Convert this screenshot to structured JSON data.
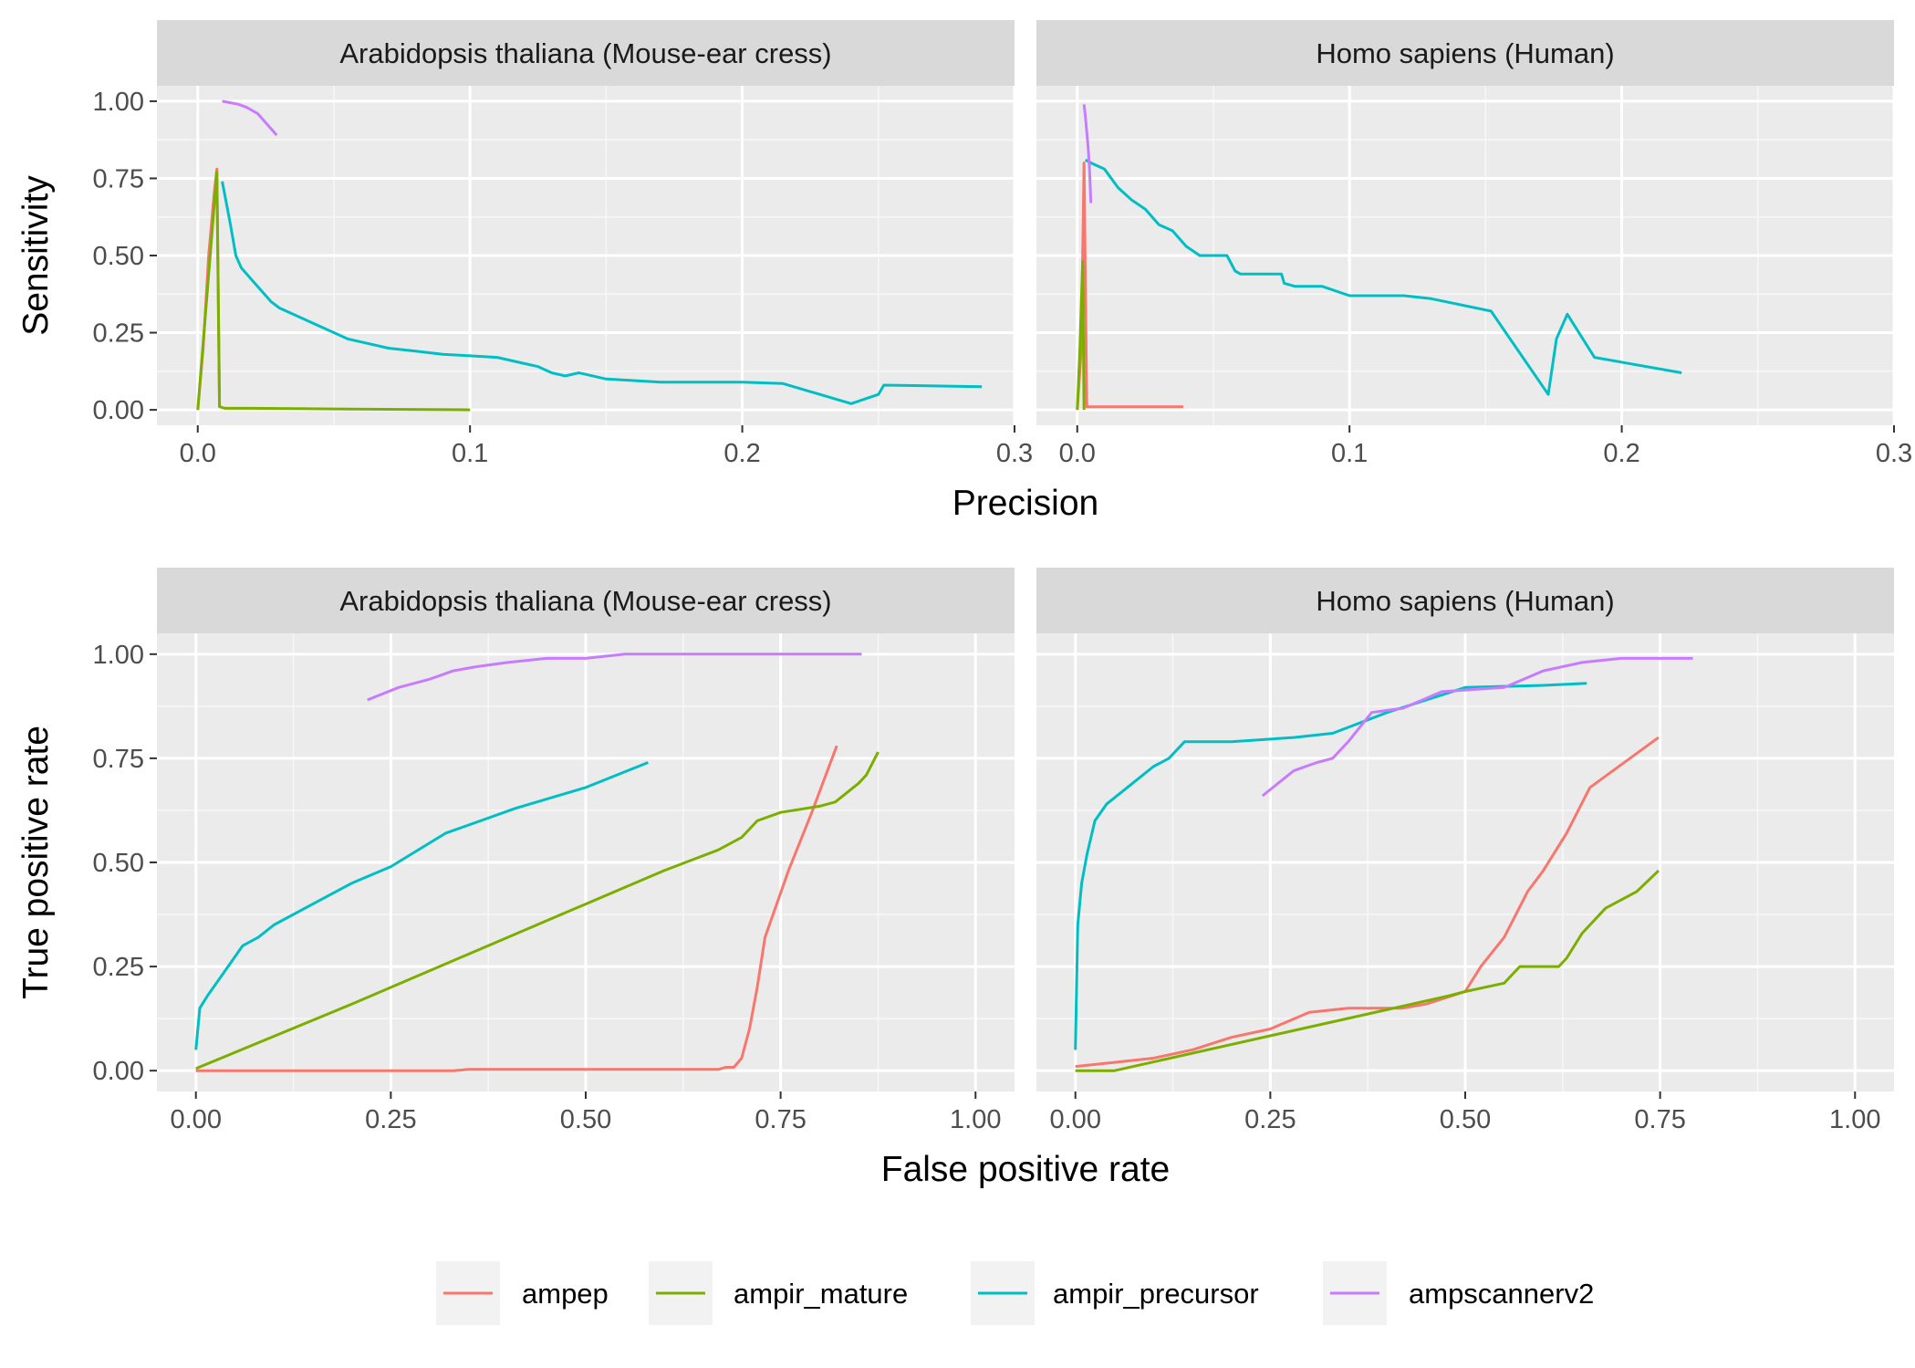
{
  "chart_data": [
    {
      "type": "line",
      "panel": "precision-sensitivity",
      "facets": [
        "Arabidopsis thaliana (Mouse-ear cress)",
        "Homo sapiens (Human)"
      ],
      "xlabel": "Precision",
      "ylabel": "Sensitivity",
      "xlim": [
        -0.015,
        0.3
      ],
      "ylim": [
        -0.05,
        1.05
      ],
      "x_ticks": [
        "0.0",
        "0.1",
        "0.2",
        "0.3"
      ],
      "x_tick_values": [
        0,
        0.1,
        0.2,
        0.3
      ],
      "y_ticks": [
        "0.00",
        "0.25",
        "0.50",
        "0.75",
        "1.00"
      ],
      "y_tick_values": [
        0,
        0.25,
        0.5,
        0.75,
        1.0
      ],
      "grid": true,
      "facet_series": [
        [
          {
            "name": "ampep",
            "x": [
              0.0,
              0.002,
              0.004,
              0.006,
              0.007,
              0.008
            ],
            "y": [
              0.0,
              0.2,
              0.5,
              0.7,
              0.78,
              0.01
            ]
          },
          {
            "name": "ampir_mature",
            "x": [
              0.0,
              0.007,
              0.008,
              0.01,
              0.02,
              0.05,
              0.1
            ],
            "y": [
              0.0,
              0.77,
              0.01,
              0.005,
              0.005,
              0.003,
              0.0
            ]
          },
          {
            "name": "ampir_precursor",
            "x": [
              0.009,
              0.012,
              0.014,
              0.016,
              0.02,
              0.027,
              0.03,
              0.035,
              0.04,
              0.045,
              0.05,
              0.055,
              0.06,
              0.07,
              0.08,
              0.09,
              0.1,
              0.11,
              0.12,
              0.125,
              0.13,
              0.135,
              0.14,
              0.15,
              0.17,
              0.2,
              0.215,
              0.24,
              0.25,
              0.252,
              0.288
            ],
            "y": [
              0.74,
              0.6,
              0.5,
              0.46,
              0.42,
              0.35,
              0.33,
              0.31,
              0.29,
              0.27,
              0.25,
              0.23,
              0.22,
              0.2,
              0.19,
              0.18,
              0.175,
              0.17,
              0.15,
              0.14,
              0.12,
              0.11,
              0.12,
              0.1,
              0.09,
              0.09,
              0.085,
              0.02,
              0.05,
              0.08,
              0.075
            ]
          },
          {
            "name": "ampscannerv2",
            "x": [
              0.009,
              0.012,
              0.015,
              0.018,
              0.022,
              0.025,
              0.029
            ],
            "y": [
              1.0,
              0.995,
              0.99,
              0.98,
              0.96,
              0.93,
              0.89
            ]
          }
        ],
        [
          {
            "name": "ampep",
            "x": [
              0.0,
              0.0015,
              0.0025,
              0.0035,
              0.01,
              0.02,
              0.039
            ],
            "y": [
              0.0,
              0.2,
              0.8,
              0.01,
              0.01,
              0.01,
              0.01
            ]
          },
          {
            "name": "ampir_mature",
            "x": [
              0.0,
              0.001,
              0.002,
              0.0025
            ],
            "y": [
              0.0,
              0.2,
              0.48,
              0.0
            ]
          },
          {
            "name": "ampir_precursor",
            "x": [
              0.003,
              0.005,
              0.01,
              0.015,
              0.02,
              0.025,
              0.03,
              0.035,
              0.04,
              0.045,
              0.05,
              0.055,
              0.058,
              0.06,
              0.075,
              0.076,
              0.08,
              0.09,
              0.1,
              0.11,
              0.12,
              0.13,
              0.152,
              0.173,
              0.176,
              0.18,
              0.19,
              0.222
            ],
            "y": [
              0.81,
              0.8,
              0.78,
              0.72,
              0.68,
              0.65,
              0.6,
              0.58,
              0.53,
              0.5,
              0.5,
              0.5,
              0.45,
              0.44,
              0.44,
              0.41,
              0.4,
              0.4,
              0.37,
              0.37,
              0.37,
              0.36,
              0.32,
              0.05,
              0.23,
              0.31,
              0.17,
              0.12
            ]
          },
          {
            "name": "ampscannerv2",
            "x": [
              0.0025,
              0.003,
              0.0035,
              0.004,
              0.0045,
              0.005
            ],
            "y": [
              0.99,
              0.95,
              0.9,
              0.85,
              0.78,
              0.67
            ]
          }
        ]
      ]
    },
    {
      "type": "line",
      "panel": "roc",
      "facets": [
        "Arabidopsis thaliana (Mouse-ear cress)",
        "Homo sapiens (Human)"
      ],
      "xlabel": "False positive rate",
      "ylabel": "True positive rate",
      "xlim": [
        -0.05,
        1.05
      ],
      "ylim": [
        -0.05,
        1.05
      ],
      "x_ticks": [
        "0.00",
        "0.25",
        "0.50",
        "0.75",
        "1.00"
      ],
      "x_tick_values": [
        0,
        0.25,
        0.5,
        0.75,
        1.0
      ],
      "y_ticks": [
        "0.00",
        "0.25",
        "0.50",
        "0.75",
        "1.00"
      ],
      "y_tick_values": [
        0,
        0.25,
        0.5,
        0.75,
        1.0
      ],
      "grid": true,
      "facet_series": [
        [
          {
            "name": "ampep",
            "x": [
              0.0,
              0.33,
              0.35,
              0.5,
              0.67,
              0.68,
              0.69,
              0.7,
              0.71,
              0.72,
              0.73,
              0.76,
              0.79,
              0.822
            ],
            "y": [
              0.0,
              0.0,
              0.003,
              0.003,
              0.003,
              0.008,
              0.008,
              0.03,
              0.1,
              0.2,
              0.32,
              0.48,
              0.62,
              0.78
            ]
          },
          {
            "name": "ampir_mature",
            "x": [
              0.0,
              0.2,
              0.4,
              0.6,
              0.67,
              0.7,
              0.72,
              0.75,
              0.8,
              0.82,
              0.85,
              0.86,
              0.875
            ],
            "y": [
              0.005,
              0.16,
              0.32,
              0.48,
              0.53,
              0.56,
              0.6,
              0.62,
              0.635,
              0.645,
              0.69,
              0.71,
              0.765
            ]
          },
          {
            "name": "ampir_precursor",
            "x": [
              0.0,
              0.005,
              0.015,
              0.03,
              0.045,
              0.06,
              0.08,
              0.1,
              0.15,
              0.2,
              0.25,
              0.32,
              0.41,
              0.5,
              0.58
            ],
            "y": [
              0.05,
              0.15,
              0.18,
              0.22,
              0.26,
              0.3,
              0.32,
              0.35,
              0.4,
              0.45,
              0.49,
              0.57,
              0.63,
              0.68,
              0.74
            ]
          },
          {
            "name": "ampscannerv2",
            "x": [
              0.22,
              0.26,
              0.3,
              0.33,
              0.36,
              0.4,
              0.45,
              0.5,
              0.55,
              0.67,
              0.7,
              0.854
            ],
            "y": [
              0.89,
              0.92,
              0.94,
              0.96,
              0.97,
              0.98,
              0.99,
              0.99,
              1.0,
              1.0,
              1.0,
              1.0
            ]
          }
        ],
        [
          {
            "name": "ampep",
            "x": [
              0.0,
              0.05,
              0.1,
              0.15,
              0.2,
              0.25,
              0.3,
              0.35,
              0.42,
              0.45,
              0.5,
              0.52,
              0.55,
              0.58,
              0.6,
              0.63,
              0.66,
              0.748
            ],
            "y": [
              0.01,
              0.02,
              0.03,
              0.05,
              0.08,
              0.1,
              0.14,
              0.15,
              0.15,
              0.16,
              0.19,
              0.25,
              0.32,
              0.43,
              0.48,
              0.57,
              0.68,
              0.8
            ]
          },
          {
            "name": "ampir_mature",
            "x": [
              0.0,
              0.05,
              0.48,
              0.5,
              0.55,
              0.57,
              0.62,
              0.63,
              0.65,
              0.66,
              0.68,
              0.7,
              0.72,
              0.748
            ],
            "y": [
              0.0,
              0.0,
              0.18,
              0.19,
              0.21,
              0.25,
              0.25,
              0.27,
              0.33,
              0.35,
              0.39,
              0.41,
              0.43,
              0.48
            ]
          },
          {
            "name": "ampir_precursor",
            "x": [
              0.0,
              0.003,
              0.008,
              0.015,
              0.025,
              0.04,
              0.06,
              0.08,
              0.1,
              0.12,
              0.14,
              0.2,
              0.28,
              0.33,
              0.4,
              0.5,
              0.6,
              0.656
            ],
            "y": [
              0.05,
              0.35,
              0.45,
              0.52,
              0.6,
              0.64,
              0.67,
              0.7,
              0.73,
              0.75,
              0.79,
              0.79,
              0.8,
              0.81,
              0.86,
              0.92,
              0.925,
              0.93
            ]
          },
          {
            "name": "ampscannerv2",
            "x": [
              0.24,
              0.28,
              0.31,
              0.33,
              0.35,
              0.38,
              0.42,
              0.47,
              0.55,
              0.6,
              0.65,
              0.7,
              0.792
            ],
            "y": [
              0.66,
              0.72,
              0.74,
              0.75,
              0.79,
              0.86,
              0.87,
              0.91,
              0.92,
              0.96,
              0.98,
              0.99,
              0.99
            ]
          }
        ]
      ]
    }
  ],
  "legend": {
    "placement": "bottom",
    "entries": [
      {
        "name": "ampep",
        "color": "#F8766D"
      },
      {
        "name": "ampir_mature",
        "color": "#7CAE00"
      },
      {
        "name": "ampir_precursor",
        "color": "#00BFC4"
      },
      {
        "name": "ampscannerv2",
        "color": "#C77CFF"
      }
    ]
  }
}
